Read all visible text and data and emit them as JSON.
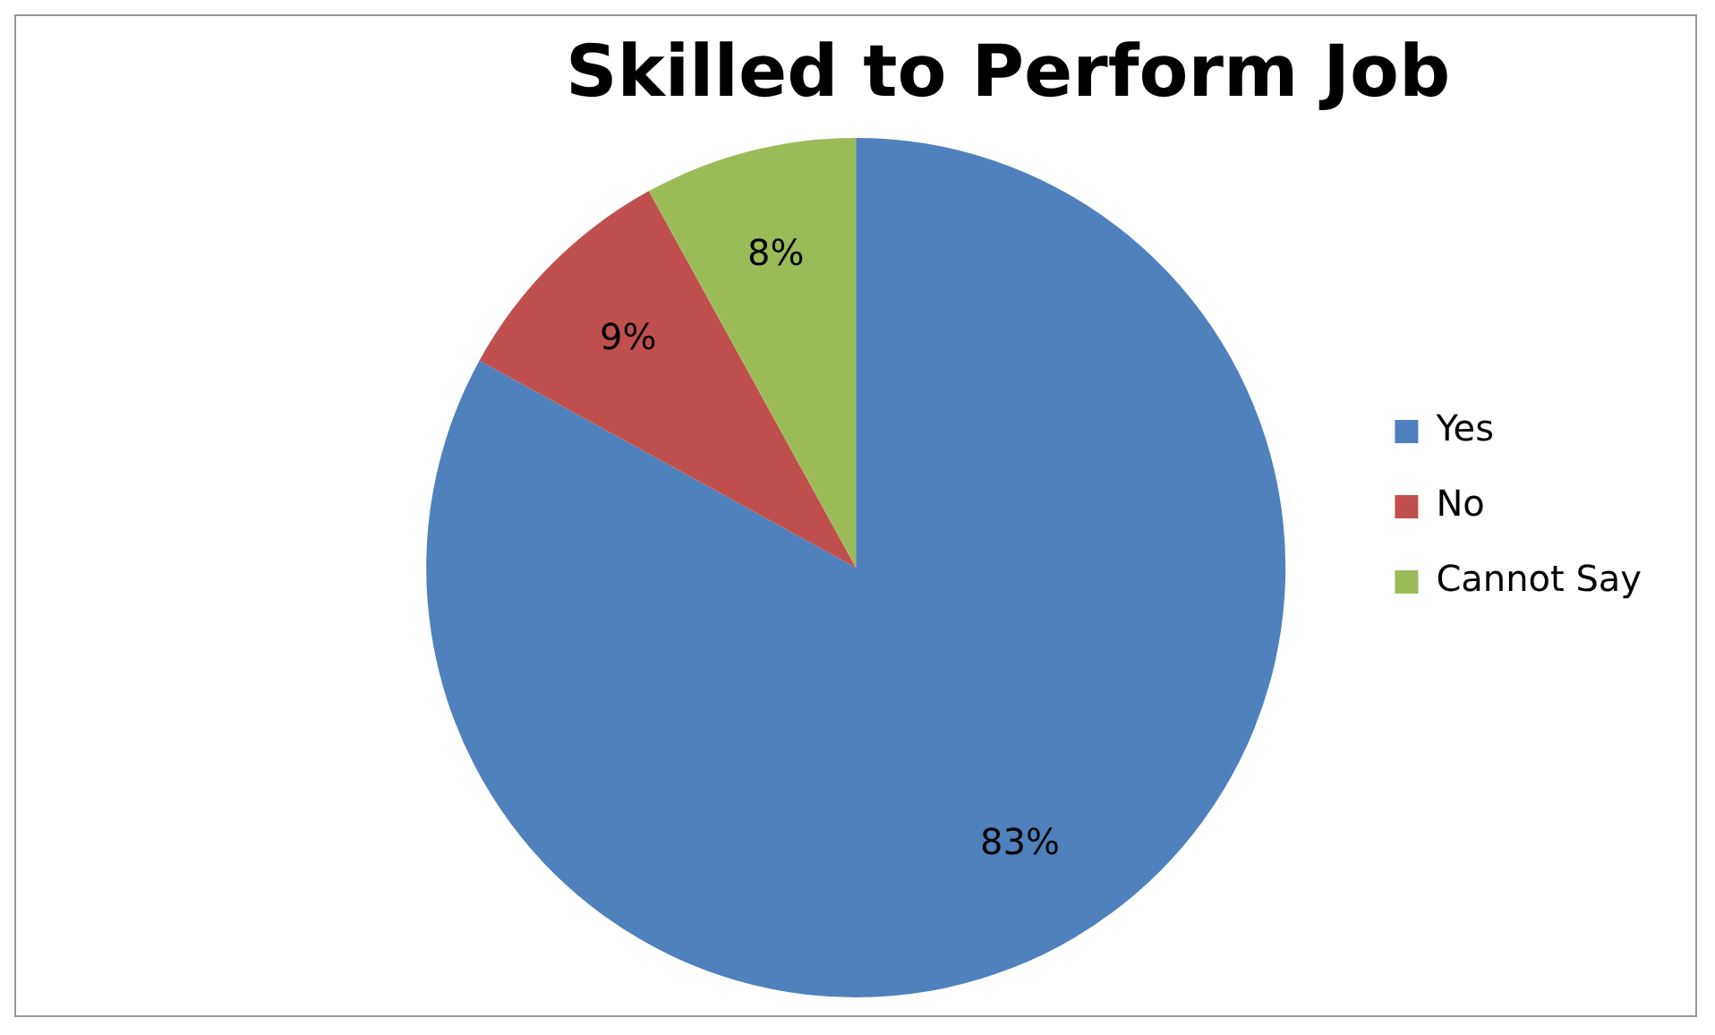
{
  "chart_data": {
    "type": "pie",
    "title": "Skilled to Perform Job",
    "categories": [
      "Yes",
      "No",
      "Cannot Say"
    ],
    "values": [
      83,
      9,
      8
    ],
    "colors": [
      "#4f81bd",
      "#c0504d",
      "#9bbb59"
    ],
    "value_labels": [
      "83%",
      "9%",
      "8%"
    ],
    "legend": "right"
  }
}
